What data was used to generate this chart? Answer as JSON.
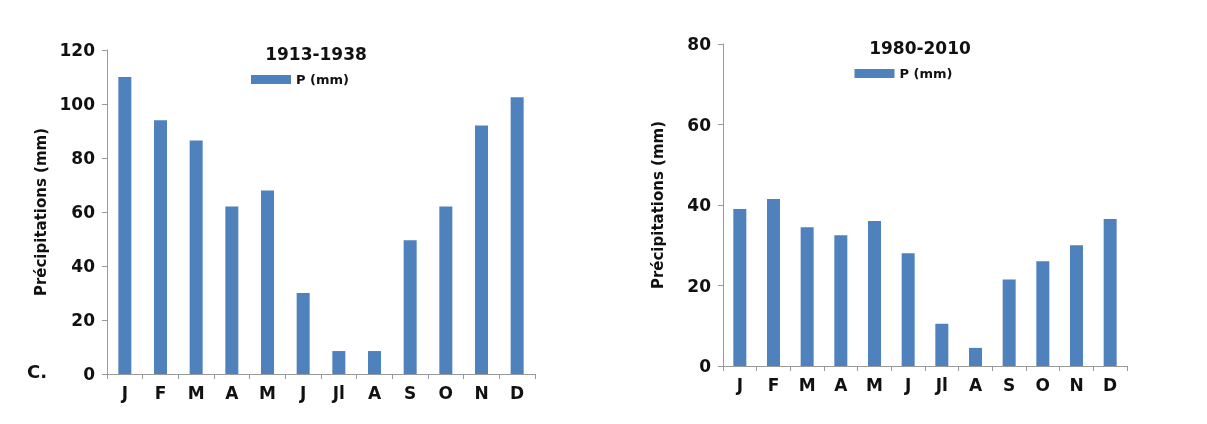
{
  "chart_data": [
    {
      "type": "bar",
      "title": "1913-1938",
      "ylabel": "Précipitations (mm)",
      "categories": [
        "J",
        "F",
        "M",
        "A",
        "M",
        "J",
        "Jl",
        "A",
        "S",
        "O",
        "N",
        "D"
      ],
      "series": [
        {
          "name": "P (mm)",
          "color": "#4f81bd",
          "values": [
            110,
            94,
            86.5,
            62,
            68,
            30,
            8.5,
            8.5,
            49.5,
            62,
            92,
            102.5
          ]
        }
      ],
      "ylim": [
        0,
        120
      ],
      "yticks": [
        0,
        20,
        40,
        60,
        80,
        100,
        120
      ],
      "grid": false,
      "legend": "top",
      "annotations": [
        "C."
      ]
    },
    {
      "type": "bar",
      "title": "1980-2010",
      "ylabel": "Précipitations (mm)",
      "categories": [
        "J",
        "F",
        "M",
        "A",
        "M",
        "J",
        "Jl",
        "A",
        "S",
        "O",
        "N",
        "D"
      ],
      "series": [
        {
          "name": "P (mm)",
          "color": "#4f81bd",
          "values": [
            39,
            41.5,
            34.5,
            32.5,
            36,
            28,
            10.5,
            4.5,
            21.5,
            26,
            30,
            36.5
          ]
        }
      ],
      "ylim": [
        0,
        80
      ],
      "yticks": [
        0,
        20,
        40,
        60,
        80
      ],
      "grid": false,
      "legend": "top"
    }
  ]
}
